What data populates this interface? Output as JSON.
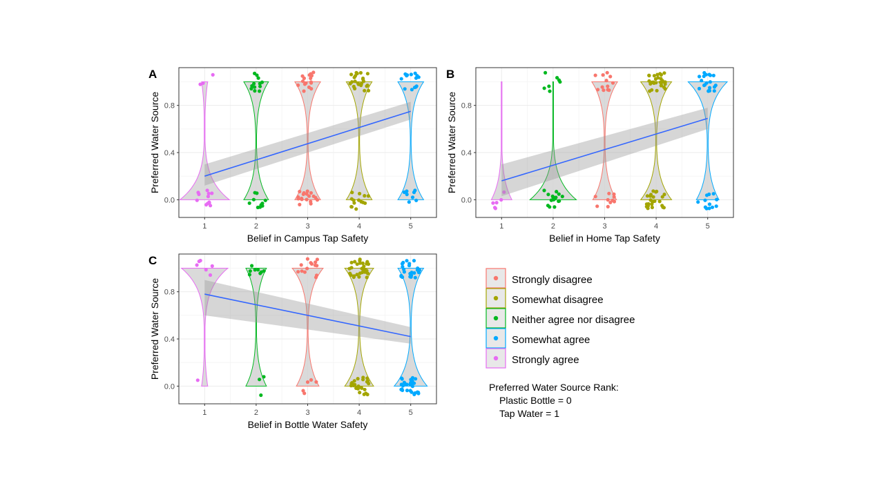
{
  "chart_data": [
    {
      "type": "violin",
      "panel": "A",
      "xlabel": "Belief in Campus Tap Safety",
      "ylabel": "Preferred Water Source",
      "x_ticks": [
        "1",
        "2",
        "3",
        "4",
        "5"
      ],
      "y_ticks": [
        "0.0",
        "0.4",
        "0.8"
      ],
      "ylim": [
        -0.15,
        1.12
      ],
      "grid": true,
      "categories": [
        {
          "x": 1,
          "color": "#E76BF3",
          "dens0": 0.86,
          "dens1": 0.14,
          "width0": 0.48,
          "width1": 0.06,
          "n0": 12,
          "n1": 3
        },
        {
          "x": 2,
          "color": "#00B81F",
          "dens0": 0.3,
          "dens1": 0.7,
          "width0": 0.24,
          "width1": 0.24,
          "n0": 10,
          "n1": 12
        },
        {
          "x": 3,
          "color": "#F8766D",
          "dens0": 0.5,
          "dens1": 0.5,
          "width0": 0.25,
          "width1": 0.25,
          "n0": 18,
          "n1": 16
        },
        {
          "x": 4,
          "color": "#A3A500",
          "dens0": 0.4,
          "dens1": 0.6,
          "width0": 0.25,
          "width1": 0.25,
          "n0": 14,
          "n1": 24
        },
        {
          "x": 5,
          "color": "#00A9FF",
          "dens0": 0.26,
          "dens1": 0.74,
          "width0": 0.25,
          "width1": 0.25,
          "n0": 8,
          "n1": 14
        }
      ],
      "trend": {
        "x": [
          1,
          5
        ],
        "y": [
          0.2,
          0.75
        ],
        "se_low": [
          0.12,
          0.68
        ],
        "se_high": [
          0.3,
          0.83
        ]
      }
    },
    {
      "type": "violin",
      "panel": "B",
      "xlabel": "Belief in Home Tap Safety",
      "ylabel": "Preferred Water Source",
      "x_ticks": [
        "1",
        "2",
        "3",
        "4",
        "5"
      ],
      "y_ticks": [
        "0.0",
        "0.4",
        "0.8"
      ],
      "ylim": [
        -0.15,
        1.12
      ],
      "grid": true,
      "categories": [
        {
          "x": 1,
          "color": "#E76BF3",
          "dens0": 1.0,
          "dens1": 0.0,
          "width0": 0.2,
          "width1": 0.0,
          "n0": 6,
          "n1": 0
        },
        {
          "x": 2,
          "color": "#00B81F",
          "dens0": 0.6,
          "dens1": 0.4,
          "width0": 0.45,
          "width1": 0.0,
          "n0": 16,
          "n1": 7
        },
        {
          "x": 3,
          "color": "#F8766D",
          "dens0": 0.4,
          "dens1": 0.6,
          "width0": 0.23,
          "width1": 0.25,
          "n0": 10,
          "n1": 12
        },
        {
          "x": 4,
          "color": "#A3A500",
          "dens0": 0.45,
          "dens1": 0.55,
          "width0": 0.3,
          "width1": 0.3,
          "n0": 24,
          "n1": 30
        },
        {
          "x": 5,
          "color": "#00A9FF",
          "dens0": 0.3,
          "dens1": 0.7,
          "width0": 0.22,
          "width1": 0.38,
          "n0": 12,
          "n1": 20
        }
      ],
      "trend": {
        "x": [
          1,
          5
        ],
        "y": [
          0.16,
          0.69
        ],
        "se_low": [
          0.03,
          0.6
        ],
        "se_high": [
          0.3,
          0.78
        ]
      }
    },
    {
      "type": "violin",
      "panel": "C",
      "xlabel": "Belief in Bottle Water Safety",
      "ylabel": "Preferred Water Source",
      "x_ticks": [
        "1",
        "2",
        "3",
        "4",
        "5"
      ],
      "y_ticks": [
        "0.0",
        "0.4",
        "0.8"
      ],
      "ylim": [
        -0.15,
        1.12
      ],
      "grid": true,
      "categories": [
        {
          "x": 1,
          "color": "#E76BF3",
          "dens0": 0.18,
          "dens1": 0.82,
          "width0": 0.06,
          "width1": 0.45,
          "n0": 1,
          "n1": 6
        },
        {
          "x": 2,
          "color": "#00B81F",
          "dens0": 0.3,
          "dens1": 0.7,
          "width0": 0.2,
          "width1": 0.2,
          "n0": 3,
          "n1": 8
        },
        {
          "x": 3,
          "color": "#F8766D",
          "dens0": 0.4,
          "dens1": 0.6,
          "width0": 0.22,
          "width1": 0.3,
          "n0": 5,
          "n1": 14
        },
        {
          "x": 4,
          "color": "#A3A500",
          "dens0": 0.45,
          "dens1": 0.55,
          "width0": 0.28,
          "width1": 0.28,
          "n0": 24,
          "n1": 30
        },
        {
          "x": 5,
          "color": "#00A9FF",
          "dens0": 0.65,
          "dens1": 0.35,
          "width0": 0.32,
          "width1": 0.25,
          "n0": 28,
          "n1": 24
        }
      ],
      "trend": {
        "x": [
          1,
          5
        ],
        "y": [
          0.78,
          0.42
        ],
        "se_low": [
          0.6,
          0.36
        ],
        "se_high": [
          0.9,
          0.5
        ]
      }
    }
  ],
  "legend": {
    "items": [
      {
        "label": "Strongly disagree",
        "color": "#F8766D"
      },
      {
        "label": "Somewhat disagree",
        "color": "#A3A500"
      },
      {
        "label": "Neither agree nor disagree",
        "color": "#00B81F"
      },
      {
        "label": "Somewhat agree",
        "color": "#00A9FF"
      },
      {
        "label": "Strongly agree",
        "color": "#E76BF3"
      }
    ]
  },
  "note": {
    "title": "Preferred Water Source Rank:",
    "line1": "Plastic Bottle = 0",
    "line2": "Tap Water = 1"
  },
  "colors": {
    "trend_line": "#3366FF",
    "ribbon": "#999999",
    "violin_fill": "#d4d4d4",
    "grid": "#ebebeb",
    "border": "#333333"
  }
}
